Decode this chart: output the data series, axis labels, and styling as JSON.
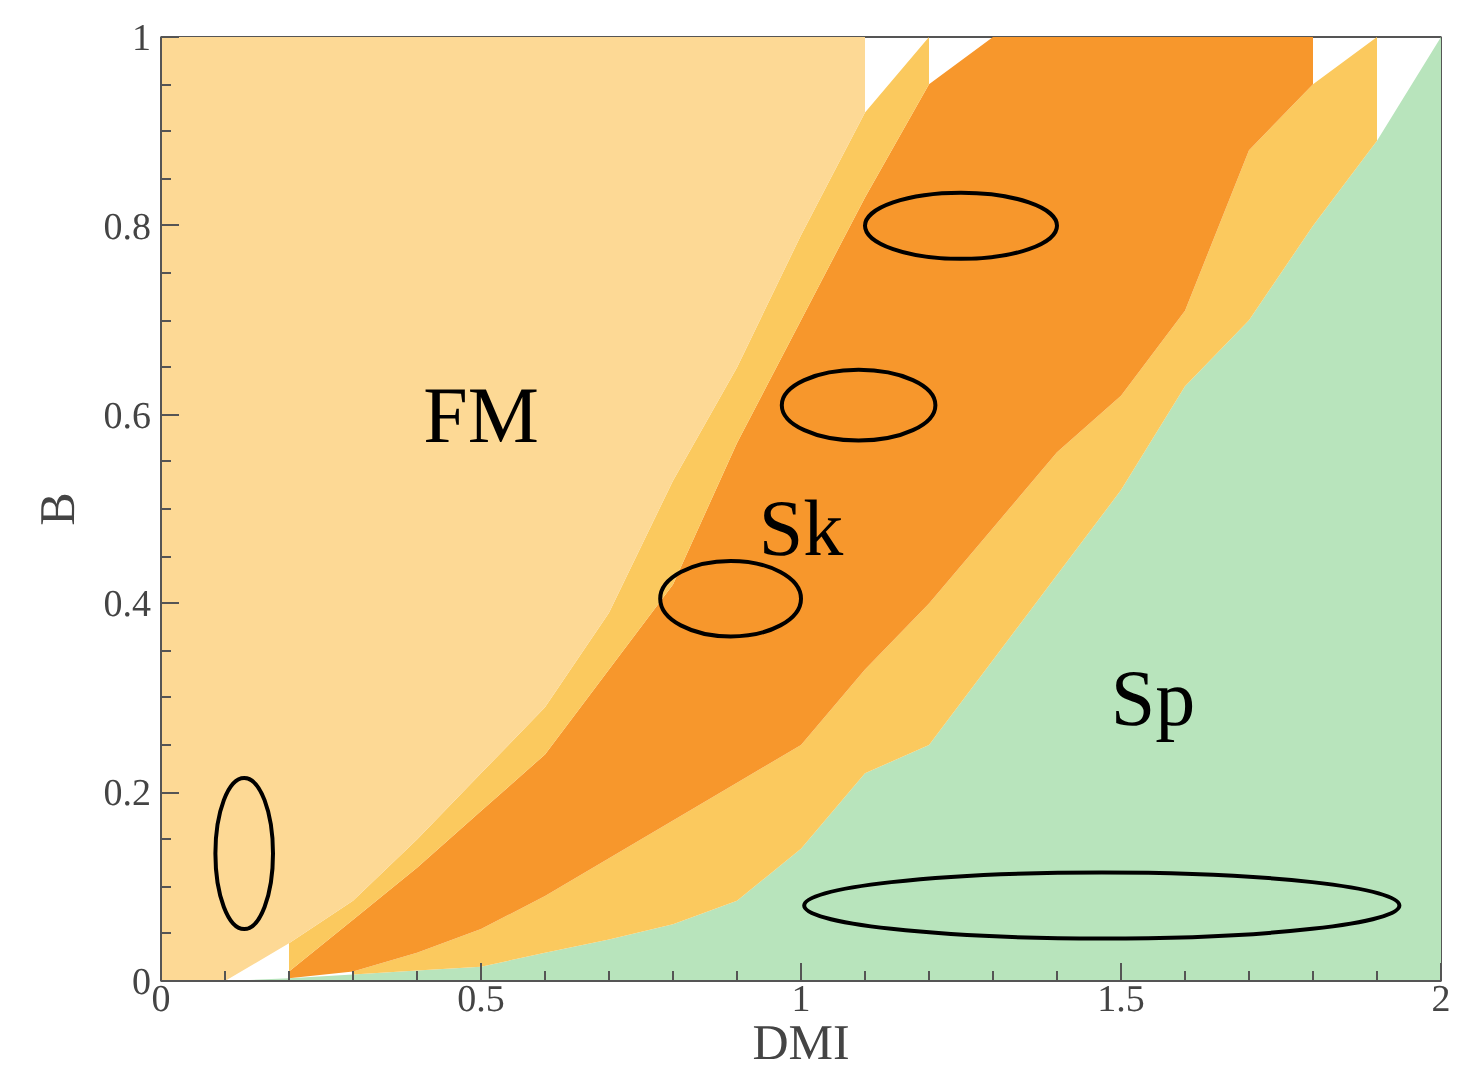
{
  "chart_data": {
    "type": "area",
    "stacked": true,
    "xlabel": "DMI",
    "ylabel": "B",
    "x": [
      0,
      0.1,
      0.2,
      0.3,
      0.4,
      0.5,
      0.6,
      0.7,
      0.8,
      0.9,
      1,
      1.1,
      1.2,
      1.3,
      1.4,
      1.5,
      1.6,
      1.7,
      1.8,
      1.9,
      2
    ],
    "series": [
      {
        "color": "#b8e4bc",
        "values": [
          0,
          0,
          0.003,
          0.007,
          0.011,
          0.015,
          0.03,
          0.044,
          0.06,
          0.085,
          0.14,
          0.22,
          0.25,
          0.34,
          0.43,
          0.52,
          0.63,
          0.7,
          0.8,
          0.89,
          1
        ]
      },
      {
        "color": "#fbc95e",
        "values": [
          null,
          null,
          null,
          0.003,
          0.019,
          0.04,
          0.06,
          0.086,
          0.11,
          0.125,
          0.11,
          0.11,
          0.15,
          0.14,
          0.13,
          0.1,
          0.08,
          0.18,
          0.15,
          0.11,
          null
        ]
      },
      {
        "color": "#f7972c",
        "values": [
          null,
          null,
          0.007,
          0.055,
          0.09,
          0.125,
          0.15,
          0.2,
          0.25,
          0.36,
          0.45,
          0.5,
          0.55,
          0.52,
          0.44,
          0.38,
          0.29,
          0.12,
          0.05,
          null,
          null
        ]
      },
      {
        "color": "#fbc95e",
        "values": [
          null,
          null,
          0.03,
          0.02,
          0.03,
          0.04,
          0.05,
          0.06,
          0.11,
          0.08,
          0.09,
          0.09,
          0.05,
          null,
          null,
          null,
          null,
          null,
          null,
          null,
          null
        ]
      },
      {
        "color": "#fdd995",
        "values": [
          1,
          1,
          0.96,
          0.915,
          0.85,
          0.78,
          0.71,
          0.61,
          0.47,
          0.35,
          0.21,
          0.08,
          null,
          null,
          null,
          null,
          null,
          null,
          null,
          null,
          null
        ]
      }
    ],
    "xlim": [
      0,
      2
    ],
    "ylim": [
      0,
      1
    ],
    "xticks": [
      0,
      {
        "value": 0.1,
        "label": null
      },
      {
        "value": 0.2,
        "label": null
      },
      {
        "value": 0.3,
        "label": null
      },
      {
        "value": 0.4,
        "label": null
      },
      0.5,
      {
        "value": 0.6,
        "label": null
      },
      {
        "value": 0.7,
        "label": null
      },
      {
        "value": 0.8,
        "label": null
      },
      {
        "value": 0.9,
        "label": null
      },
      1,
      {
        "value": 1.1,
        "label": null
      },
      {
        "value": 1.2,
        "label": null
      },
      {
        "value": 1.3,
        "label": null
      },
      {
        "value": 1.4,
        "label": null
      },
      1.5,
      {
        "value": 1.6,
        "label": null
      },
      {
        "value": 1.7,
        "label": null
      },
      {
        "value": 1.8,
        "label": null
      },
      {
        "value": 1.9,
        "label": null
      },
      2
    ],
    "yticks": [
      0,
      {
        "value": 0.05,
        "label": null
      },
      {
        "value": 0.1,
        "label": null
      },
      {
        "value": 0.15,
        "label": null
      },
      0.2,
      {
        "value": 0.25,
        "label": null
      },
      {
        "value": 0.3,
        "label": null
      },
      {
        "value": 0.35,
        "label": null
      },
      0.4,
      {
        "value": 0.45,
        "label": null
      },
      {
        "value": 0.5,
        "label": null
      },
      {
        "value": 0.55,
        "label": null
      },
      0.6,
      {
        "value": 0.65,
        "label": null
      },
      {
        "value": 0.7,
        "label": null
      },
      {
        "value": 0.75,
        "label": null
      },
      0.8,
      {
        "value": 0.85,
        "label": null
      },
      {
        "value": 0.9,
        "label": null
      },
      {
        "value": 0.95,
        "label": null
      },
      1
    ],
    "annotations": [
      "FM",
      "Sk",
      "Sp"
    ]
  }
}
